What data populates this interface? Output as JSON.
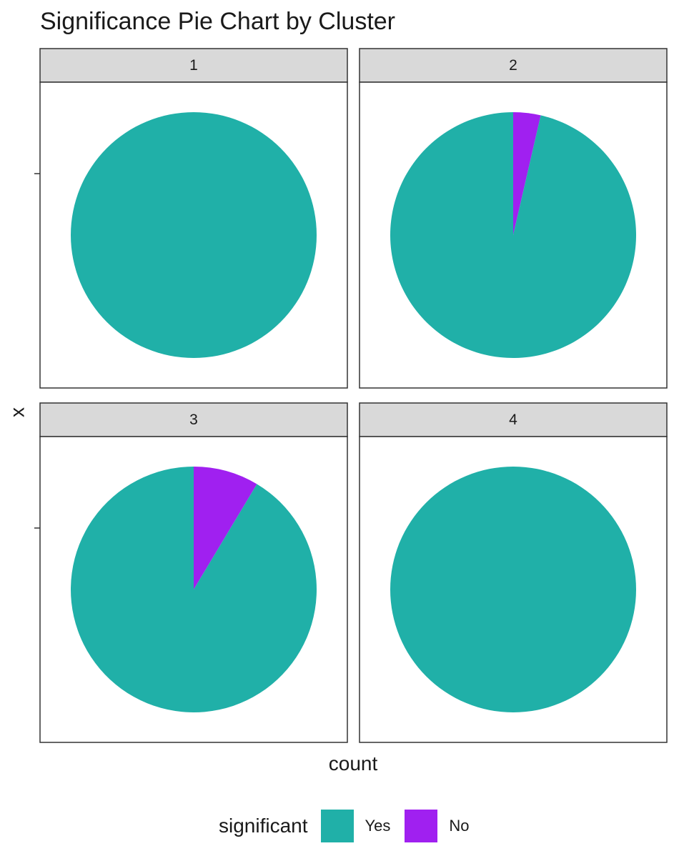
{
  "chart_data": {
    "type": "pie",
    "title": "Significance Pie Chart by Cluster",
    "xlabel": "count",
    "ylabel": "x",
    "facets": [
      {
        "label": "1",
        "slices": [
          {
            "category": "Yes",
            "value": 1.0
          },
          {
            "category": "No",
            "value": 0.0
          }
        ]
      },
      {
        "label": "2",
        "slices": [
          {
            "category": "Yes",
            "value": 0.964
          },
          {
            "category": "No",
            "value": 0.036
          }
        ]
      },
      {
        "label": "3",
        "slices": [
          {
            "category": "Yes",
            "value": 0.914
          },
          {
            "category": "No",
            "value": 0.086
          }
        ]
      },
      {
        "label": "4",
        "slices": [
          {
            "category": "Yes",
            "value": 1.0
          },
          {
            "category": "No",
            "value": 0.0
          }
        ]
      }
    ],
    "legend": {
      "title": "significant",
      "position": "bottom",
      "entries": [
        {
          "label": "Yes",
          "color": "#20B0A8"
        },
        {
          "label": "No",
          "color": "#A020F0"
        }
      ]
    },
    "colors": {
      "Yes": "#20B0A8",
      "No": "#A020F0"
    },
    "strip_color": "#d9d9d9",
    "grid": false
  }
}
